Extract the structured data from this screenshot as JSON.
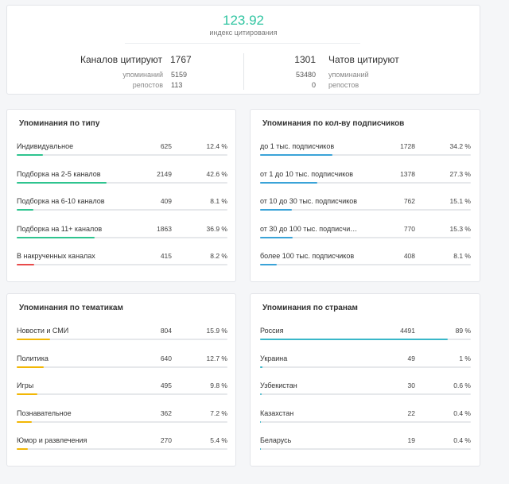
{
  "summary": {
    "index_value": "123.92",
    "index_label": "индекс цитирования",
    "channels": {
      "label": "Каналов цитируют",
      "count": "1767",
      "mentions_label": "упоминаний",
      "mentions_value": "5159",
      "reposts_label": "репостов",
      "reposts_value": "113"
    },
    "chats": {
      "label": "Чатов цитируют",
      "count": "1301",
      "mentions_label": "упоминаний",
      "mentions_value": "53480",
      "reposts_label": "репостов",
      "reposts_value": "0"
    }
  },
  "colors": {
    "accent_green": "#2ec4a0",
    "bar_green": "#2ec48f",
    "bar_red": "#e84b4b",
    "bar_blue": "#3aa3d8",
    "bar_yellow": "#f2b705",
    "bar_cyan": "#3ab7c9",
    "track": "#e6e8eb"
  },
  "by_type": {
    "title": "Упоминания по типу",
    "rows": [
      {
        "label": "Индивидуальное",
        "count": "625",
        "pct": "12.4 %",
        "fraction": 0.124,
        "color": "#2ec48f"
      },
      {
        "label": "Подборка на 2-5 каналов",
        "count": "2149",
        "pct": "42.6 %",
        "fraction": 0.426,
        "color": "#2ec48f"
      },
      {
        "label": "Подборка на 6-10 каналов",
        "count": "409",
        "pct": "8.1 %",
        "fraction": 0.081,
        "color": "#2ec48f"
      },
      {
        "label": "Подборка на 11+ каналов",
        "count": "1863",
        "pct": "36.9 %",
        "fraction": 0.369,
        "color": "#2ec48f"
      },
      {
        "label": "В накрученных каналах",
        "count": "415",
        "pct": "8.2 %",
        "fraction": 0.082,
        "color": "#e84b4b"
      }
    ]
  },
  "by_subscribers": {
    "title": "Упоминания по кол-ву подписчиков",
    "rows": [
      {
        "label": "до 1 тыс. подписчиков",
        "count": "1728",
        "pct": "34.2 %",
        "fraction": 0.342,
        "color": "#3aa3d8"
      },
      {
        "label": "от 1 до 10 тыс. подписчиков",
        "count": "1378",
        "pct": "27.3 %",
        "fraction": 0.273,
        "color": "#3aa3d8"
      },
      {
        "label": "от 10 до 30 тыс. подписчиков",
        "count": "762",
        "pct": "15.1 %",
        "fraction": 0.151,
        "color": "#3aa3d8"
      },
      {
        "label": "от 30 до 100 тыс. подписчи…",
        "count": "770",
        "pct": "15.3 %",
        "fraction": 0.153,
        "color": "#3aa3d8"
      },
      {
        "label": "более 100 тыс. подписчиков",
        "count": "408",
        "pct": "8.1 %",
        "fraction": 0.081,
        "color": "#3aa3d8"
      }
    ]
  },
  "by_topic": {
    "title": "Упоминания по тематикам",
    "rows": [
      {
        "label": "Новости и СМИ",
        "count": "804",
        "pct": "15.9 %",
        "fraction": 0.159,
        "color": "#f2b705"
      },
      {
        "label": "Политика",
        "count": "640",
        "pct": "12.7 %",
        "fraction": 0.127,
        "color": "#f2b705"
      },
      {
        "label": "Игры",
        "count": "495",
        "pct": "9.8 %",
        "fraction": 0.098,
        "color": "#f2b705"
      },
      {
        "label": "Познавательное",
        "count": "362",
        "pct": "7.2 %",
        "fraction": 0.072,
        "color": "#f2b705"
      },
      {
        "label": "Юмор и развлечения",
        "count": "270",
        "pct": "5.4 %",
        "fraction": 0.054,
        "color": "#f2b705"
      }
    ]
  },
  "by_country": {
    "title": "Упоминания по странам",
    "rows": [
      {
        "label": "Россия",
        "count": "4491",
        "pct": "89 %",
        "fraction": 0.89,
        "color": "#3ab7c9"
      },
      {
        "label": "Украина",
        "count": "49",
        "pct": "1 %",
        "fraction": 0.01,
        "color": "#3ab7c9"
      },
      {
        "label": "Узбекистан",
        "count": "30",
        "pct": "0.6 %",
        "fraction": 0.006,
        "color": "#3ab7c9"
      },
      {
        "label": "Казахстан",
        "count": "22",
        "pct": "0.4 %",
        "fraction": 0.004,
        "color": "#3ab7c9"
      },
      {
        "label": "Беларусь",
        "count": "19",
        "pct": "0.4 %",
        "fraction": 0.004,
        "color": "#3ab7c9"
      }
    ]
  }
}
